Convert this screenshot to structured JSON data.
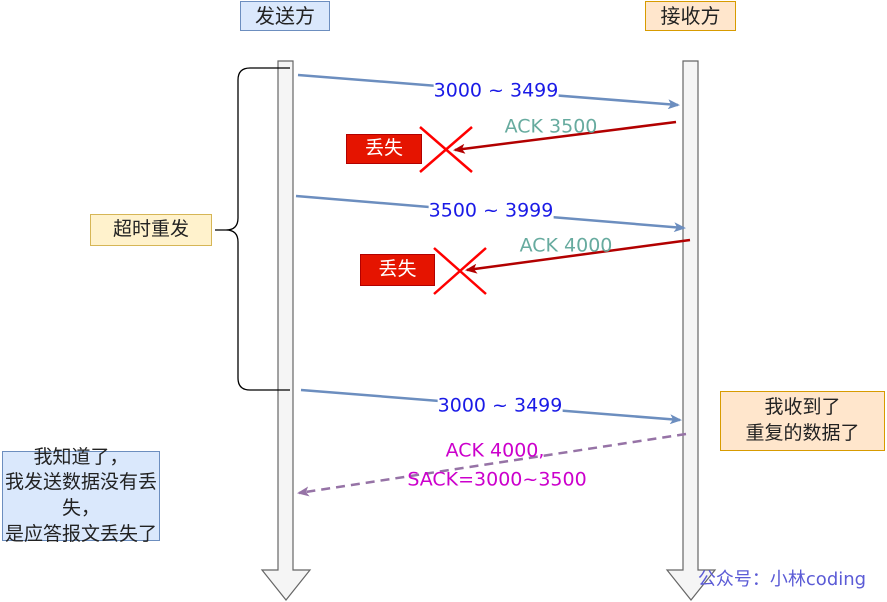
{
  "participants": {
    "sender": "发送方",
    "receiver": "接收方"
  },
  "messages": [
    {
      "label": "3000 ~ 3499",
      "direction": "sender-to-receiver",
      "color": "#6c8ebf",
      "text_color": "#1a1ae6"
    },
    {
      "label": "ACK 3500",
      "direction": "receiver-to-sender",
      "color": "#b20000",
      "text_color": "#67ab9f",
      "lost": true
    },
    {
      "label": "3500 ~ 3999",
      "direction": "sender-to-receiver",
      "color": "#6c8ebf",
      "text_color": "#1a1ae6"
    },
    {
      "label": "ACK 4000",
      "direction": "receiver-to-sender",
      "color": "#b20000",
      "text_color": "#67ab9f",
      "lost": true
    },
    {
      "label": "3000 ~ 3499",
      "direction": "sender-to-receiver",
      "color": "#6c8ebf",
      "text_color": "#1a1ae6"
    },
    {
      "label_lines": [
        "ACK 4000,",
        "SACK=3000~3500"
      ],
      "direction": "receiver-to-sender",
      "style": "dashed",
      "color": "#9673a6",
      "text_color": "#cc00cc"
    }
  ],
  "lost_label": "丢失",
  "timeout_label": "超时重发",
  "receiver_note": [
    "我收到了",
    "重复的数据了"
  ],
  "sender_note": [
    "我知道了，",
    "我发送数据没有丢失，",
    "是应答报文丢失了"
  ],
  "watermark": "公众号：小林coding"
}
